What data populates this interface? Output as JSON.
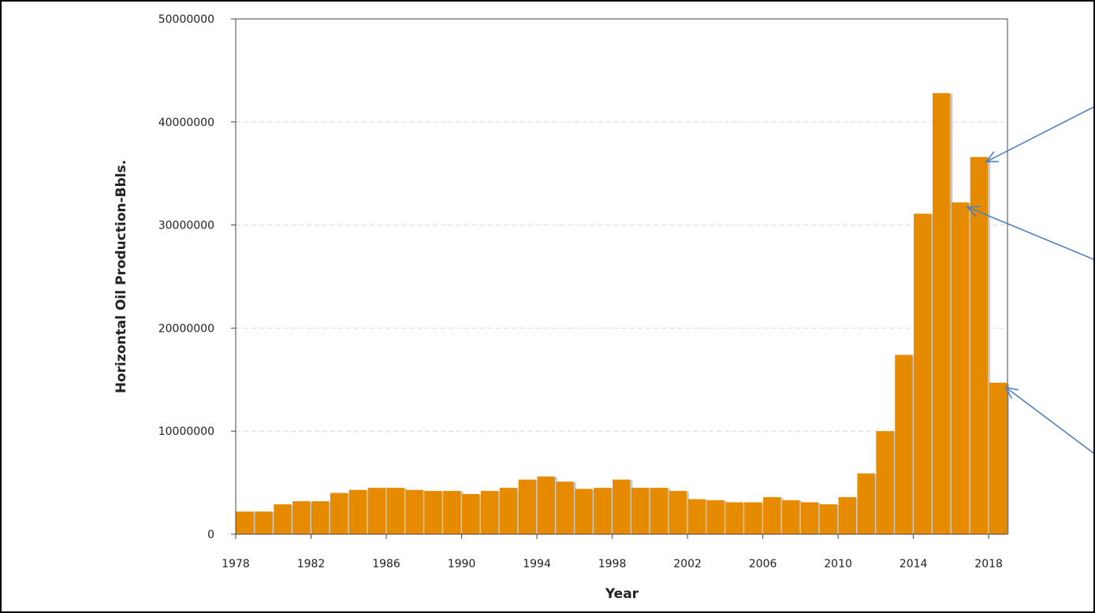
{
  "colors": {
    "bar": "#e68a00",
    "bar_shadow": "#c9c9c9",
    "grid": "#d9d9d9",
    "axis": "#444444",
    "arrow": "#4f81bd"
  },
  "chart_data": {
    "type": "bar",
    "title": "",
    "xlabel": "Year",
    "ylabel": "Horizontal Oil Production-Bbls.",
    "ylim": [
      0,
      50000000
    ],
    "y_ticks": [
      "0",
      "10000000",
      "20000000",
      "30000000",
      "40000000",
      "50000000"
    ],
    "x_ticks": [
      "1978",
      "1982",
      "1986",
      "1990",
      "1994",
      "1998",
      "2002",
      "2006",
      "2010",
      "2014",
      "2018"
    ],
    "grid": "horizontal dashed",
    "legend": "none",
    "categories": [
      1978,
      1979,
      1980,
      1981,
      1982,
      1983,
      1984,
      1985,
      1986,
      1987,
      1988,
      1989,
      1990,
      1991,
      1992,
      1993,
      1994,
      1995,
      1996,
      1997,
      1998,
      1999,
      2000,
      2001,
      2002,
      2003,
      2004,
      2005,
      2006,
      2007,
      2008,
      2009,
      2010,
      2011,
      2012,
      2013,
      2014,
      2015,
      2016,
      2017,
      2018
    ],
    "values": [
      2200000,
      2200000,
      2900000,
      3200000,
      3200000,
      4000000,
      4300000,
      4500000,
      4500000,
      4300000,
      4200000,
      4200000,
      3900000,
      4200000,
      4500000,
      5300000,
      5600000,
      5100000,
      4400000,
      4500000,
      5300000,
      4500000,
      4500000,
      4200000,
      3400000,
      3300000,
      3100000,
      3100000,
      3600000,
      3300000,
      3100000,
      2900000,
      3600000,
      5900000,
      10000000,
      17400000,
      31100000,
      42800000,
      32200000,
      36600000,
      14700000
    ]
  }
}
